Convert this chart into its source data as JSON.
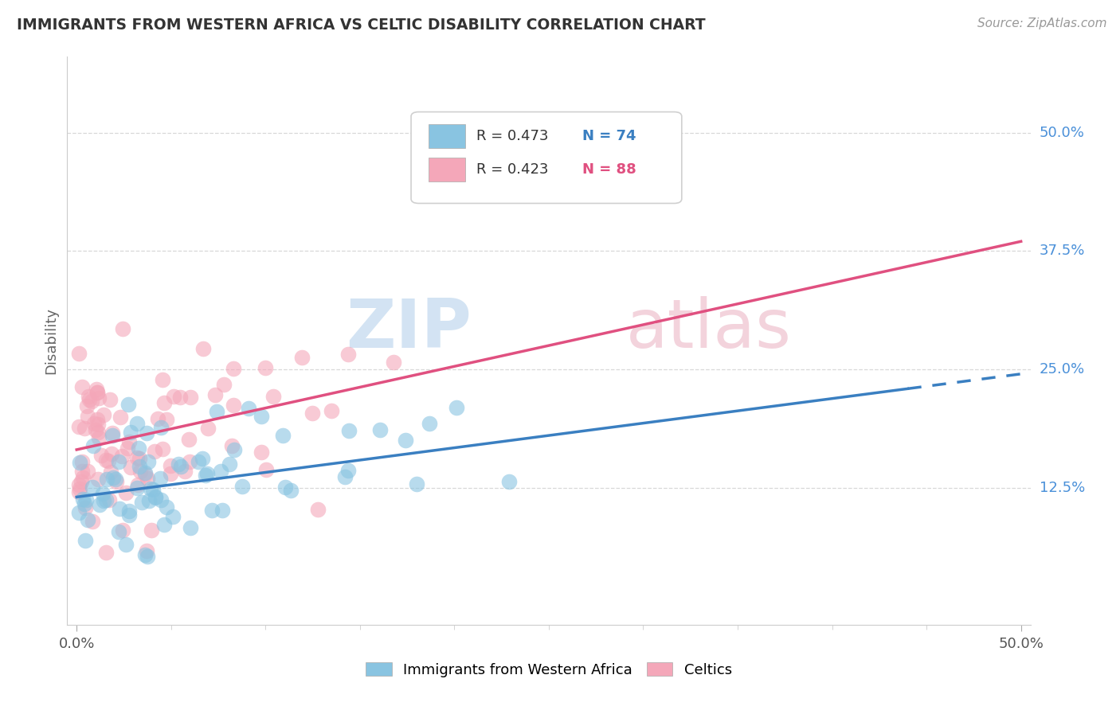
{
  "title": "IMMIGRANTS FROM WESTERN AFRICA VS CELTIC DISABILITY CORRELATION CHART",
  "source": "Source: ZipAtlas.com",
  "ylabel": "Disability",
  "ylabel_right_labels": [
    "12.5%",
    "25.0%",
    "37.5%",
    "50.0%"
  ],
  "ylabel_right_values": [
    0.125,
    0.25,
    0.375,
    0.5
  ],
  "xlim": [
    0.0,
    0.5
  ],
  "ylim": [
    0.0,
    0.55
  ],
  "blue_R": "R = 0.473",
  "blue_N": "N = 74",
  "pink_R": "R = 0.423",
  "pink_N": "N = 88",
  "blue_color": "#89c4e1",
  "pink_color": "#f4a7b9",
  "blue_line_color": "#3a7fc1",
  "pink_line_color": "#e05080",
  "legend_blue_label": "Immigrants from Western Africa",
  "legend_pink_label": "Celtics",
  "grid_color": "#d8d8d8",
  "watermark_color": "#d0dce8",
  "watermark_color2": "#e8d0d8"
}
